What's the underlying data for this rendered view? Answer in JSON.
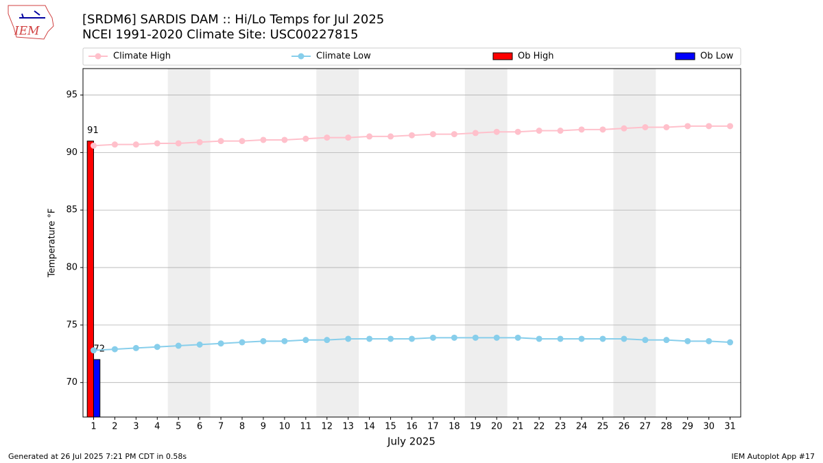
{
  "logo_text": "IEM",
  "footer_left": "Generated at 26 Jul 2025 7:21 PM CDT in 0.58s",
  "footer_right": "IEM Autoplot App #17",
  "chart_data": {
    "type": "line",
    "title": "[SRDM6] SARDIS DAM :: Hi/Lo Temps for Jul 2025",
    "subtitle": "NCEI 1991-2020 Climate Site: USC00227815",
    "xlabel": "July 2025",
    "ylabel": "Temperature °F",
    "x": [
      1,
      2,
      3,
      4,
      5,
      6,
      7,
      8,
      9,
      10,
      11,
      12,
      13,
      14,
      15,
      16,
      17,
      18,
      19,
      20,
      21,
      22,
      23,
      24,
      25,
      26,
      27,
      28,
      29,
      30,
      31
    ],
    "series": [
      {
        "name": "Climate High",
        "kind": "line",
        "color": "#ffc0cb",
        "values": [
          90.6,
          90.7,
          90.7,
          90.8,
          90.8,
          90.9,
          91.0,
          91.0,
          91.1,
          91.1,
          91.2,
          91.3,
          91.3,
          91.4,
          91.4,
          91.5,
          91.6,
          91.6,
          91.7,
          91.8,
          91.8,
          91.9,
          91.9,
          92.0,
          92.0,
          92.1,
          92.2,
          92.2,
          92.3,
          92.3,
          92.3
        ]
      },
      {
        "name": "Climate Low",
        "kind": "line",
        "color": "#87ceeb",
        "values": [
          72.8,
          72.9,
          73.0,
          73.1,
          73.2,
          73.3,
          73.4,
          73.5,
          73.6,
          73.6,
          73.7,
          73.7,
          73.8,
          73.8,
          73.8,
          73.8,
          73.9,
          73.9,
          73.9,
          73.9,
          73.9,
          73.8,
          73.8,
          73.8,
          73.8,
          73.8,
          73.7,
          73.7,
          73.6,
          73.6,
          73.5
        ]
      },
      {
        "name": "Ob High",
        "kind": "bar",
        "color": "#ff0000",
        "x": [
          1
        ],
        "values": [
          91
        ]
      },
      {
        "name": "Ob Low",
        "kind": "bar",
        "color": "#0000ff",
        "x": [
          1
        ],
        "values": [
          72
        ]
      }
    ],
    "weekend_spans": [
      [
        4.5,
        6.5
      ],
      [
        11.5,
        13.5
      ],
      [
        18.5,
        20.5
      ],
      [
        25.5,
        27.5
      ]
    ],
    "xlim": [
      0.5,
      31.5
    ],
    "ylim": [
      67,
      97.3
    ],
    "xticks": [
      1,
      2,
      3,
      4,
      5,
      6,
      7,
      8,
      9,
      10,
      11,
      12,
      13,
      14,
      15,
      16,
      17,
      18,
      19,
      20,
      21,
      22,
      23,
      24,
      25,
      26,
      27,
      28,
      29,
      30,
      31
    ],
    "yticks": [
      70,
      75,
      80,
      85,
      90,
      95
    ],
    "grid": true,
    "legend": "top"
  }
}
